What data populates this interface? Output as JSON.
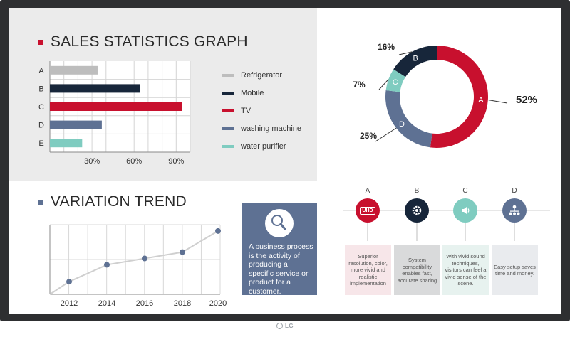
{
  "sales": {
    "title": "SALES STATISTICS GRAPH",
    "legend": [
      {
        "label": "Refrigerator",
        "color": "#bdbdbd"
      },
      {
        "label": "Mobile",
        "color": "#17263a"
      },
      {
        "label": "TV",
        "color": "#c8102e"
      },
      {
        "label": "washing machine",
        "color": "#5e7193"
      },
      {
        "label": "water purifier",
        "color": "#7fccc0"
      }
    ]
  },
  "variation": {
    "title": "VARIATION TREND"
  },
  "info_card": {
    "icon": "magnifier-icon",
    "text": "A business process is the activity of producing a specific service or product for a customer."
  },
  "features": [
    {
      "letter": "A",
      "icon": "uhd-icon",
      "icon_text": "UHD",
      "color": "#c8102e",
      "box_color": "#f7e6e9",
      "text": "Superior resolution, color, more vivid and realistic implementation"
    },
    {
      "letter": "B",
      "icon": "gear-icon",
      "color": "#17263a",
      "box_color": "#d9dadb",
      "text": "System compatibility enables fast, accurate sharing"
    },
    {
      "letter": "C",
      "icon": "speaker-icon",
      "color": "#7fccc0",
      "box_color": "#e7f2ef",
      "text": "With vivid sound techniques, visitors can feel a vivid sense of the scene."
    },
    {
      "letter": "D",
      "icon": "network-icon",
      "color": "#5e7193",
      "box_color": "#e9ebee",
      "text": "Easy setup saves time and money."
    }
  ],
  "brand": {
    "logo_text": "LG"
  },
  "chart_data": [
    {
      "type": "bar",
      "orientation": "horizontal",
      "categories": [
        "A",
        "B",
        "C",
        "D",
        "E"
      ],
      "values": [
        34,
        64,
        94,
        37,
        23
      ],
      "colors": [
        "#bdbdbd",
        "#17263a",
        "#c8102e",
        "#5e7193",
        "#7fccc0"
      ],
      "xticks": [
        30,
        60,
        90
      ],
      "xtick_labels": [
        "30%",
        "60%",
        "90%"
      ],
      "xlim": [
        0,
        100
      ],
      "grid": true
    },
    {
      "type": "pie",
      "style": "donut",
      "slices": [
        {
          "label": "A",
          "value": 52,
          "value_label": "52%",
          "color": "#c8102e"
        },
        {
          "label": "D",
          "value": 25,
          "value_label": "25%",
          "color": "#5e7193"
        },
        {
          "label": "C",
          "value": 7,
          "value_label": "7%",
          "color": "#7fccc0"
        },
        {
          "label": "B",
          "value": 16,
          "value_label": "16%",
          "color": "#17263a"
        }
      ]
    },
    {
      "type": "line",
      "x": [
        "2012",
        "2014",
        "2016",
        "2018",
        "2020"
      ],
      "values": [
        12,
        28,
        34,
        40,
        60
      ],
      "ylim": [
        0,
        66
      ],
      "color": "#5e7193",
      "line_color": "#cfcfcf",
      "grid": true
    }
  ]
}
